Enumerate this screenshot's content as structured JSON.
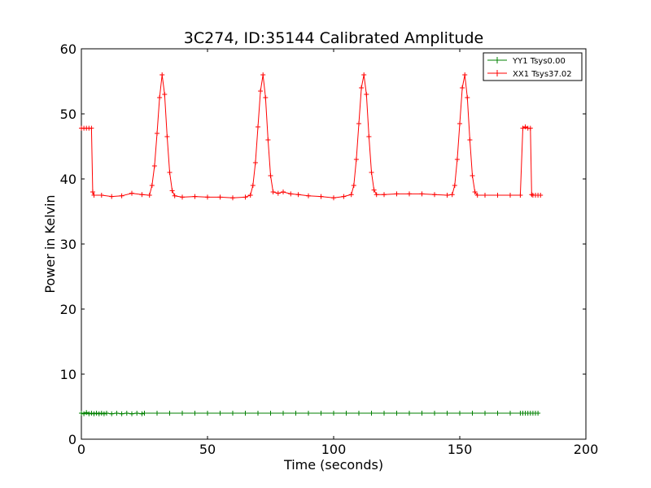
{
  "chart_data": {
    "type": "line",
    "title": "3C274, ID:35144 Calibrated Amplitude",
    "xlabel": "Time (seconds)",
    "ylabel": "Power in Kelvin",
    "xlim": [
      0,
      200
    ],
    "ylim": [
      0,
      60
    ],
    "xticks": [
      "0",
      "50",
      "100",
      "150",
      "200"
    ],
    "yticks": [
      "0",
      "10",
      "20",
      "30",
      "40",
      "50",
      "60"
    ],
    "grid": false,
    "legend_position": "top-right",
    "series": [
      {
        "name": "YY1 Tsys0.00",
        "color": "#008000",
        "marker": "+",
        "points": [
          [
            0,
            4.0
          ],
          [
            1,
            3.9
          ],
          [
            2,
            4.1
          ],
          [
            3,
            3.9
          ],
          [
            4,
            4.0
          ],
          [
            5,
            3.9
          ],
          [
            6,
            4.0
          ],
          [
            7,
            3.9
          ],
          [
            8,
            4.0
          ],
          [
            9,
            3.9
          ],
          [
            10,
            4.0
          ],
          [
            12,
            3.9
          ],
          [
            14,
            4.0
          ],
          [
            16,
            3.9
          ],
          [
            18,
            4.0
          ],
          [
            20,
            3.9
          ],
          [
            22,
            4.0
          ],
          [
            24,
            3.9
          ],
          [
            25,
            4.0
          ],
          [
            30,
            4.0
          ],
          [
            35,
            4.0
          ],
          [
            40,
            4.0
          ],
          [
            45,
            4.0
          ],
          [
            50,
            4.0
          ],
          [
            55,
            4.0
          ],
          [
            60,
            4.0
          ],
          [
            65,
            4.0
          ],
          [
            70,
            4.0
          ],
          [
            75,
            4.0
          ],
          [
            80,
            4.0
          ],
          [
            85,
            4.0
          ],
          [
            90,
            4.0
          ],
          [
            95,
            4.0
          ],
          [
            100,
            4.0
          ],
          [
            105,
            4.0
          ],
          [
            110,
            4.0
          ],
          [
            115,
            4.0
          ],
          [
            120,
            4.0
          ],
          [
            125,
            4.0
          ],
          [
            130,
            4.0
          ],
          [
            135,
            4.0
          ],
          [
            140,
            4.0
          ],
          [
            145,
            4.0
          ],
          [
            150,
            4.0
          ],
          [
            155,
            4.0
          ],
          [
            160,
            4.0
          ],
          [
            165,
            4.0
          ],
          [
            170,
            4.0
          ],
          [
            174,
            4.0
          ],
          [
            175,
            4.0
          ],
          [
            176,
            4.0
          ],
          [
            177,
            4.0
          ],
          [
            178,
            4.0
          ],
          [
            179,
            4.0
          ],
          [
            180,
            4.0
          ],
          [
            181,
            4.0
          ]
        ]
      },
      {
        "name": "XX1 Tsys37.02",
        "color": "#ff0000",
        "marker": "+",
        "points": [
          [
            0,
            47.8
          ],
          [
            1,
            47.8
          ],
          [
            2,
            47.8
          ],
          [
            3,
            47.8
          ],
          [
            4,
            47.8
          ],
          [
            4.5,
            38.0
          ],
          [
            5,
            37.5
          ],
          [
            8,
            37.5
          ],
          [
            12,
            37.3
          ],
          [
            16,
            37.4
          ],
          [
            20,
            37.8
          ],
          [
            24,
            37.6
          ],
          [
            27,
            37.5
          ],
          [
            28,
            39.0
          ],
          [
            29,
            42.0
          ],
          [
            30,
            47.0
          ],
          [
            31,
            52.5
          ],
          [
            32,
            56.0
          ],
          [
            33,
            53.0
          ],
          [
            34,
            46.5
          ],
          [
            35,
            41.0
          ],
          [
            36,
            38.2
          ],
          [
            37,
            37.4
          ],
          [
            40,
            37.2
          ],
          [
            45,
            37.3
          ],
          [
            50,
            37.2
          ],
          [
            55,
            37.2
          ],
          [
            60,
            37.1
          ],
          [
            65,
            37.2
          ],
          [
            67,
            37.5
          ],
          [
            68,
            39.0
          ],
          [
            69,
            42.5
          ],
          [
            70,
            48.0
          ],
          [
            71,
            53.5
          ],
          [
            72,
            56.0
          ],
          [
            73,
            52.5
          ],
          [
            74,
            46.0
          ],
          [
            75,
            40.5
          ],
          [
            76,
            38.0
          ],
          [
            78,
            37.8
          ],
          [
            80,
            38.0
          ],
          [
            83,
            37.7
          ],
          [
            86,
            37.6
          ],
          [
            90,
            37.4
          ],
          [
            95,
            37.3
          ],
          [
            100,
            37.1
          ],
          [
            104,
            37.3
          ],
          [
            107,
            37.6
          ],
          [
            108,
            39.0
          ],
          [
            109,
            43.0
          ],
          [
            110,
            48.5
          ],
          [
            111,
            54.0
          ],
          [
            112,
            56.0
          ],
          [
            113,
            53.0
          ],
          [
            114,
            46.5
          ],
          [
            115,
            41.0
          ],
          [
            116,
            38.3
          ],
          [
            117,
            37.6
          ],
          [
            120,
            37.6
          ],
          [
            125,
            37.7
          ],
          [
            130,
            37.7
          ],
          [
            135,
            37.7
          ],
          [
            140,
            37.6
          ],
          [
            145,
            37.5
          ],
          [
            147,
            37.6
          ],
          [
            148,
            39.0
          ],
          [
            149,
            43.0
          ],
          [
            150,
            48.5
          ],
          [
            151,
            54.0
          ],
          [
            152,
            56.0
          ],
          [
            153,
            52.5
          ],
          [
            154,
            46.0
          ],
          [
            155,
            40.5
          ],
          [
            156,
            38.0
          ],
          [
            157,
            37.5
          ],
          [
            160,
            37.5
          ],
          [
            165,
            37.5
          ],
          [
            170,
            37.5
          ],
          [
            174,
            37.5
          ],
          [
            175,
            47.8
          ],
          [
            176,
            48.0
          ],
          [
            177,
            47.8
          ],
          [
            178,
            47.8
          ],
          [
            178.5,
            37.6
          ],
          [
            179,
            37.5
          ],
          [
            180,
            37.5
          ],
          [
            181,
            37.5
          ],
          [
            182,
            37.5
          ]
        ]
      }
    ]
  }
}
